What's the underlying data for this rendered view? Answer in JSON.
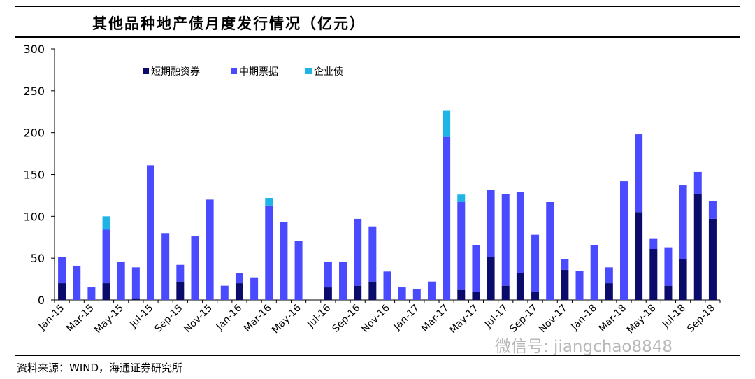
{
  "title": "其他品种地产债月度发行情况（亿元）",
  "source": "资料来源：WIND，海通证券研究所",
  "watermark": "微信号: jiangchao8848",
  "chart_data": {
    "type": "bar",
    "stacked": true,
    "title": "其他品种地产债月度发行情况（亿元）",
    "xlabel": "",
    "ylabel": "",
    "ylim": [
      0,
      300
    ],
    "yticks": [
      0,
      50,
      100,
      150,
      200,
      250,
      300
    ],
    "grid": false,
    "legend_position": "top-left",
    "categories": [
      "Jan-15",
      "Feb-15",
      "Mar-15",
      "Apr-15",
      "May-15",
      "Jun-15",
      "Jul-15",
      "Aug-15",
      "Sep-15",
      "Oct-15",
      "Nov-15",
      "Dec-15",
      "Jan-16",
      "Feb-16",
      "Mar-16",
      "Apr-16",
      "May-16",
      "Jun-16",
      "Jul-16",
      "Aug-16",
      "Sep-16",
      "Oct-16",
      "Nov-16",
      "Dec-16",
      "Jan-17",
      "Feb-17",
      "Mar-17",
      "Apr-17",
      "May-17",
      "Jun-17",
      "Jul-17",
      "Aug-17",
      "Sep-17",
      "Oct-17",
      "Nov-17",
      "Dec-17",
      "Jan-18",
      "Feb-18",
      "Mar-18",
      "Apr-18",
      "May-18",
      "Jun-18",
      "Jul-18",
      "Aug-18",
      "Sep-18"
    ],
    "tick_labels": [
      "Jan-15",
      "Mar-15",
      "May-15",
      "Jul-15",
      "Sep-15",
      "Nov-15",
      "Jan-16",
      "Mar-16",
      "May-16",
      "Jul-16",
      "Sep-16",
      "Nov-16",
      "Jan-17",
      "Mar-17",
      "May-17",
      "Jul-17",
      "Sep-17",
      "Nov-17",
      "Jan-18",
      "Mar-18",
      "May-18",
      "Jul-18",
      "Sep-18"
    ],
    "series": [
      {
        "name": "短期融资券",
        "color": "#0b0b6b",
        "values": [
          20,
          0,
          0,
          20,
          0,
          2,
          0,
          0,
          22,
          0,
          0,
          0,
          20,
          0,
          0,
          0,
          0,
          0,
          15,
          0,
          17,
          22,
          0,
          0,
          0,
          0,
          0,
          12,
          10,
          51,
          17,
          32,
          10,
          0,
          36,
          0,
          0,
          20,
          0,
          105,
          61,
          17,
          49,
          127,
          97
        ]
      },
      {
        "name": "中期票据",
        "color": "#4a4aff",
        "values": [
          31,
          41,
          15,
          64,
          46,
          37,
          161,
          80,
          20,
          76,
          120,
          17,
          12,
          27,
          113,
          93,
          71,
          0,
          31,
          46,
          80,
          66,
          34,
          15,
          13,
          22,
          195,
          105,
          56,
          81,
          110,
          97,
          68,
          117,
          13,
          35,
          66,
          19,
          142,
          93,
          12,
          46,
          88,
          26,
          21
        ]
      },
      {
        "name": "企业债",
        "color": "#1fb4e6",
        "values": [
          0,
          0,
          0,
          16,
          0,
          0,
          0,
          0,
          0,
          0,
          0,
          0,
          0,
          0,
          9,
          0,
          0,
          0,
          0,
          0,
          0,
          0,
          0,
          0,
          0,
          0,
          31,
          9,
          0,
          0,
          0,
          0,
          0,
          0,
          0,
          0,
          0,
          0,
          0,
          0,
          0,
          0,
          0,
          0,
          0
        ]
      }
    ]
  }
}
